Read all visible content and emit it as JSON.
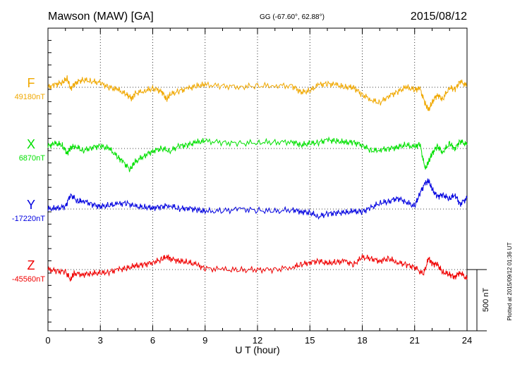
{
  "header": {
    "station": "Mawson (MAW)  [GA]",
    "coords": "GG (-67.60°,  62.88°)",
    "date": "2015/08/12"
  },
  "footer": {
    "plotted": "Plotted at 2015/09/12 01:36 UT"
  },
  "colors": {
    "F": "#f0a800",
    "X": "#00e000",
    "Y": "#0000e0",
    "Z": "#f00000",
    "axis": "#000000"
  },
  "chart_data": {
    "type": "line",
    "title": "",
    "xlabel": "U T (hour)",
    "ylabel": "",
    "xlim": [
      0,
      24
    ],
    "x_ticks": [
      "0",
      "3",
      "6",
      "9",
      "12",
      "15",
      "18",
      "21",
      "24"
    ],
    "scale_bar": {
      "value": 500,
      "label": "500 nT"
    },
    "series": [
      {
        "name": "F",
        "baseline_label": "49180nT",
        "baseline": 49180,
        "x": [
          0,
          0.4,
          0.8,
          1.1,
          1.3,
          1.6,
          2.0,
          2.5,
          3.0,
          3.5,
          4.0,
          4.5,
          4.8,
          5.0,
          5.5,
          6.0,
          6.5,
          6.8,
          7.0,
          7.5,
          8.0,
          8.5,
          9.0,
          10.0,
          11.0,
          12.0,
          13.0,
          14.0,
          14.5,
          15.0,
          15.5,
          16.0,
          16.5,
          17.0,
          17.5,
          18.0,
          18.5,
          19.0,
          19.5,
          20.0,
          20.5,
          21.0,
          21.3,
          21.6,
          21.8,
          22.0,
          22.3,
          22.6,
          23.0,
          23.3,
          23.6,
          24.0
        ],
        "values": [
          49180,
          49200,
          49220,
          49250,
          49170,
          49220,
          49240,
          49230,
          49215,
          49180,
          49160,
          49120,
          49090,
          49130,
          49150,
          49170,
          49150,
          49080,
          49120,
          49150,
          49170,
          49190,
          49200,
          49190,
          49185,
          49190,
          49195,
          49190,
          49140,
          49150,
          49200,
          49210,
          49200,
          49180,
          49180,
          49120,
          49080,
          49050,
          49110,
          49140,
          49180,
          49160,
          49170,
          49050,
          48990,
          49060,
          49120,
          49080,
          49180,
          49160,
          49230,
          49190
        ]
      },
      {
        "name": "X",
        "baseline_label": "6870nT",
        "baseline": 6870,
        "x": [
          0,
          0.4,
          0.8,
          1.1,
          1.3,
          1.6,
          2.0,
          2.5,
          3.0,
          3.5,
          4.0,
          4.3,
          4.7,
          5.0,
          5.5,
          6.0,
          6.5,
          7.0,
          7.5,
          8.0,
          8.5,
          9.0,
          10.0,
          11.0,
          12.0,
          13.0,
          14.0,
          14.5,
          15.0,
          15.5,
          16.0,
          16.5,
          17.0,
          17.5,
          18.0,
          18.5,
          19.0,
          19.5,
          20.0,
          20.5,
          21.0,
          21.3,
          21.6,
          21.8,
          22.0,
          22.3,
          22.6,
          23.0,
          23.3,
          23.6,
          24.0
        ],
        "values": [
          6890,
          6910,
          6900,
          6830,
          6880,
          6890,
          6850,
          6880,
          6890,
          6870,
          6800,
          6760,
          6700,
          6760,
          6810,
          6850,
          6870,
          6850,
          6890,
          6900,
          6920,
          6930,
          6920,
          6910,
          6920,
          6920,
          6925,
          6900,
          6910,
          6920,
          6940,
          6930,
          6920,
          6920,
          6900,
          6850,
          6860,
          6870,
          6880,
          6900,
          6880,
          6910,
          6700,
          6760,
          6830,
          6890,
          6840,
          6910,
          6870,
          6930,
          6900
        ]
      },
      {
        "name": "Y",
        "baseline_label": "-17220nT",
        "baseline": -17220,
        "x": [
          0,
          0.5,
          1.0,
          1.3,
          1.7,
          2.0,
          2.5,
          3.0,
          3.5,
          4.0,
          4.5,
          5.0,
          5.5,
          6.0,
          6.5,
          7.0,
          7.5,
          8.0,
          8.5,
          9.0,
          10.0,
          11.0,
          12.0,
          13.0,
          14.0,
          14.5,
          15.0,
          15.5,
          16.0,
          16.5,
          17.0,
          17.5,
          18.0,
          18.5,
          19.0,
          19.5,
          20.0,
          20.5,
          21.0,
          21.3,
          21.6,
          21.8,
          22.0,
          22.3,
          22.6,
          23.0,
          23.3,
          23.6,
          24.0
        ],
        "values": [
          -17220,
          -17215,
          -17200,
          -17100,
          -17160,
          -17150,
          -17180,
          -17200,
          -17190,
          -17180,
          -17170,
          -17200,
          -17205,
          -17210,
          -17200,
          -17190,
          -17220,
          -17210,
          -17225,
          -17240,
          -17235,
          -17220,
          -17230,
          -17240,
          -17225,
          -17240,
          -17250,
          -17280,
          -17260,
          -17250,
          -17250,
          -17240,
          -17240,
          -17210,
          -17170,
          -17160,
          -17130,
          -17160,
          -17200,
          -17090,
          -17010,
          -16990,
          -17060,
          -17120,
          -17100,
          -17140,
          -17100,
          -17180,
          -17130
        ]
      },
      {
        "name": "Z",
        "baseline_label": "-45560nT",
        "baseline": -45560,
        "x": [
          0,
          0.5,
          1.0,
          1.3,
          1.5,
          2.0,
          2.5,
          3.0,
          3.5,
          4.0,
          4.5,
          5.0,
          5.5,
          6.0,
          6.5,
          6.8,
          7.0,
          7.5,
          8.0,
          8.5,
          9.0,
          10.0,
          11.0,
          12.0,
          13.0,
          14.0,
          14.5,
          15.0,
          15.5,
          16.0,
          16.5,
          17.0,
          17.5,
          18.0,
          18.5,
          19.0,
          19.5,
          20.0,
          20.5,
          21.0,
          21.5,
          21.8,
          22.0,
          22.3,
          22.6,
          23.0,
          23.3,
          23.6,
          24.0
        ],
        "values": [
          -45560,
          -45570,
          -45580,
          -45640,
          -45590,
          -45600,
          -45590,
          -45590,
          -45580,
          -45560,
          -45550,
          -45530,
          -45520,
          -45500,
          -45480,
          -45450,
          -45470,
          -45490,
          -45500,
          -45520,
          -45550,
          -45560,
          -45565,
          -45560,
          -45560,
          -45540,
          -45520,
          -45500,
          -45490,
          -45510,
          -45500,
          -45490,
          -45520,
          -45460,
          -45470,
          -45490,
          -45470,
          -45500,
          -45520,
          -45540,
          -45600,
          -45470,
          -45510,
          -45520,
          -45580,
          -45600,
          -45620,
          -45580,
          -45640
        ]
      }
    ]
  }
}
